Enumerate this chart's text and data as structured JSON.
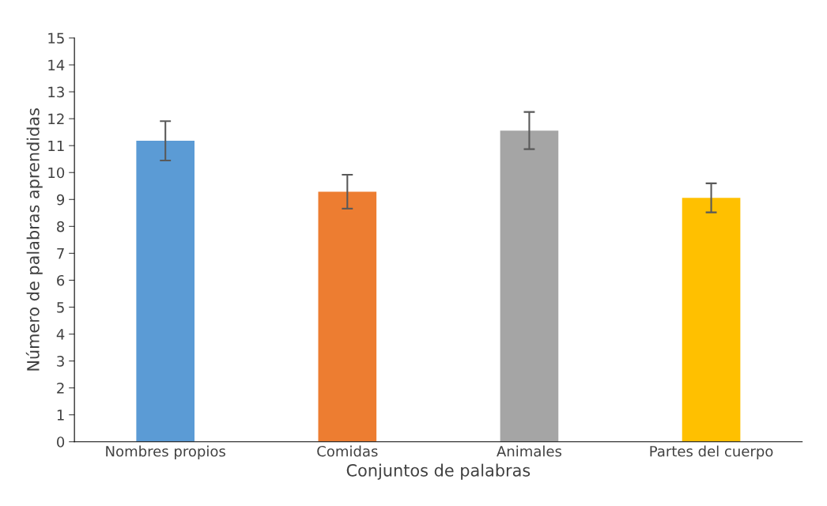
{
  "chart_data": {
    "type": "bar",
    "categories": [
      "Nombres propios",
      "Comidas",
      "Animales",
      "Partes del cuerpo"
    ],
    "values": [
      11.18,
      9.29,
      11.56,
      9.06
    ],
    "errors": [
      0.73,
      0.63,
      0.69,
      0.54
    ],
    "colors": [
      "#5b9bd5",
      "#ed7d31",
      "#a5a5a5",
      "#ffc000"
    ],
    "xlabel": "Conjuntos de palabras",
    "ylabel": "Número de palabras aprendidas",
    "ylim": [
      0,
      15
    ],
    "yticks": [
      0,
      1,
      2,
      3,
      4,
      5,
      6,
      7,
      8,
      9,
      10,
      11,
      12,
      13,
      14,
      15
    ],
    "grid": false,
    "legend": false
  }
}
